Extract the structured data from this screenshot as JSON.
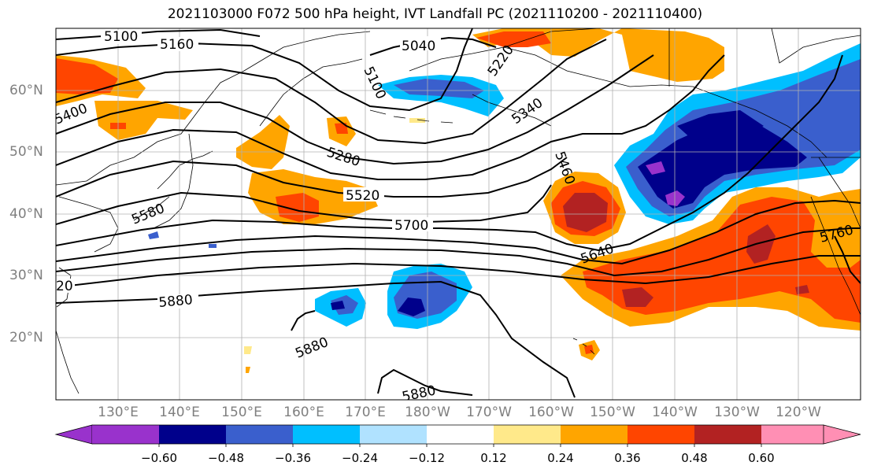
{
  "title": "2021103000 F072 500 hPa height, IVT Landfall PC (2021110200 - 2021110400)",
  "lon_labels": [
    "130°E",
    "140°E",
    "150°E",
    "160°E",
    "170°E",
    "180°W",
    "170°W",
    "160°W",
    "150°W",
    "140°W",
    "130°W",
    "120°W"
  ],
  "lat_labels": [
    "60°N",
    "50°N",
    "40°N",
    "30°N",
    "20°N"
  ],
  "contour_labels": [
    "5100",
    "5160",
    "5040",
    "5100",
    "5220",
    "5340",
    "5400",
    "5280",
    "5460",
    "5520",
    "5580",
    "5700",
    "5640",
    "5760",
    "5880",
    "5880",
    "5880",
    "20"
  ],
  "colorbar": {
    "ticks": [
      "−0.60",
      "−0.48",
      "−0.36",
      "−0.24",
      "−0.12",
      "0.12",
      "0.24",
      "0.36",
      "0.48",
      "0.60"
    ],
    "colors": [
      "#9932cc",
      "#00008b",
      "#3a5fcd",
      "#00bfff",
      "#b0e2ff",
      "#ffffff",
      "#ffe98a",
      "#ffa500",
      "#ff4500",
      "#b22222",
      "#ff8fb4"
    ]
  }
}
